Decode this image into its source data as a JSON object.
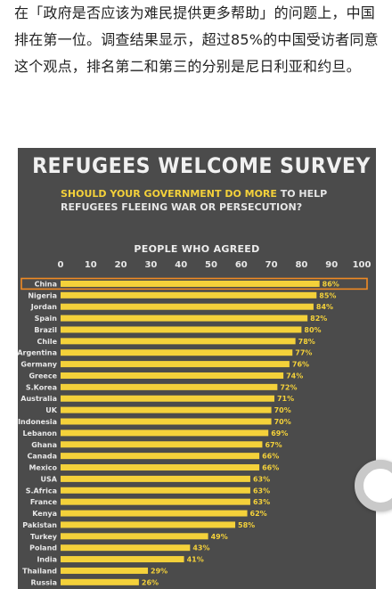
{
  "article": {
    "paragraph": "在「政府是否应该为难民提供更多帮助」的问题上，中国排在第一位。调查结果显示，超过85%的中国受访者同意这个观点，排名第二和第三的分别是尼日利亚和约旦。"
  },
  "chart_data": {
    "type": "bar",
    "orientation": "horizontal",
    "title": "REFUGEES WELCOME SURVEY",
    "subtitle_highlight": "SHOULD YOUR GOVERNMENT DO MORE",
    "subtitle_rest": " TO HELP REFUGEES FLEEING WAR OR PERSECUTION?",
    "xlabel": "PEOPLE WHO AGREED",
    "xlim": [
      0,
      100
    ],
    "xticks": [
      0,
      10,
      20,
      30,
      40,
      50,
      60,
      70,
      80,
      90,
      100
    ],
    "categories": [
      "China",
      "Nigeria",
      "Jordan",
      "Spain",
      "Brazil",
      "Chile",
      "Argentina",
      "Germany",
      "Greece",
      "S.Korea",
      "Australia",
      "UK",
      "Indonesia",
      "Lebanon",
      "Ghana",
      "Canada",
      "Mexico",
      "USA",
      "S.Africa",
      "France",
      "Kenya",
      "Pakistan",
      "Turkey",
      "Poland",
      "India",
      "Thailand",
      "Russia"
    ],
    "values": [
      86,
      85,
      84,
      82,
      80,
      78,
      77,
      76,
      74,
      72,
      71,
      70,
      70,
      69,
      67,
      66,
      66,
      63,
      63,
      63,
      62,
      58,
      49,
      43,
      41,
      29,
      26
    ],
    "value_labels": [
      "86%",
      "85%",
      "84%",
      "82%",
      "80%",
      "78%",
      "77%",
      "76%",
      "74%",
      "72%",
      "71%",
      "70%",
      "70%",
      "69%",
      "67%",
      "66%",
      "66%",
      "63%",
      "63%",
      "63%",
      "62%",
      "58%",
      "49%",
      "43%",
      "41%",
      "29%",
      "26%"
    ],
    "highlighted_category": "China",
    "colors": {
      "background": "#4b4b4b",
      "bar": "#f4d13a",
      "highlight_border": "#f08a24",
      "label": "#e8e8e8"
    }
  }
}
